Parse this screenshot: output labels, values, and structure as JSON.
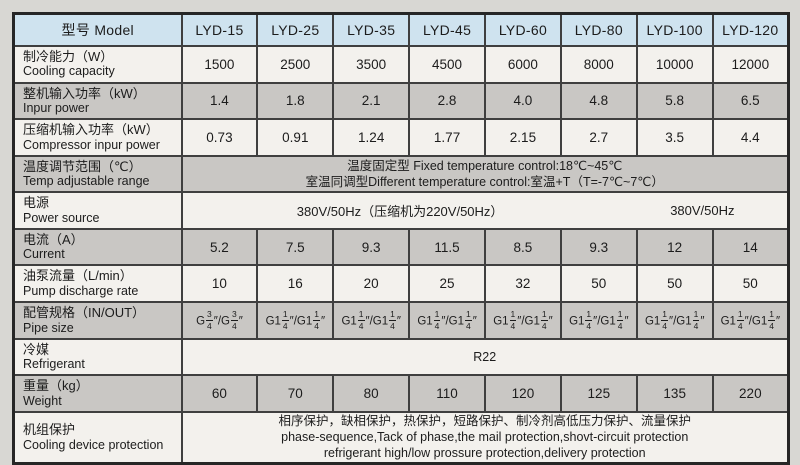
{
  "table": {
    "colors": {
      "header_bg": "#cfe3ef",
      "row_white": "#f3f1ed",
      "row_gray": "#c9c7c4",
      "line": "#3f3f3f",
      "page_bg": "#d8d7d3"
    },
    "header": {
      "label": "型号 Model",
      "models": [
        "LYD-15",
        "LYD-25",
        "LYD-35",
        "LYD-45",
        "LYD-60",
        "LYD-80",
        "LYD-100",
        "LYD-120"
      ]
    },
    "rows": [
      {
        "zh": "制冷能力（W）",
        "en": "Cooling capacity",
        "values": [
          "1500",
          "2500",
          "3500",
          "4500",
          "6000",
          "8000",
          "10000",
          "12000"
        ]
      },
      {
        "zh": "整机输入功率（kW）",
        "en": "Inpur power",
        "values": [
          "1.4",
          "1.8",
          "2.1",
          "2.8",
          "4.0",
          "4.8",
          "5.8",
          "6.5"
        ]
      },
      {
        "zh": "压缩机输入功率（kW）",
        "en": "Compressor inpur power",
        "values": [
          "0.73",
          "0.91",
          "1.24",
          "1.77",
          "2.15",
          "2.7",
          "3.5",
          "4.4"
        ]
      },
      {
        "zh": "温度调节范围（℃）",
        "en": "Temp adjustable range",
        "merged": [
          "温度固定型 Fixed temperature control:18℃~45℃",
          "室温同调型Different temperature control:室温+T（T=-7℃~7℃）"
        ]
      },
      {
        "zh": "电源",
        "en": "Power source",
        "split": [
          "380V/50Hz（压缩机为220V/50Hz）",
          "380V/50Hz"
        ]
      },
      {
        "zh": "电流（A）",
        "en": "Current",
        "values": [
          "5.2",
          "7.5",
          "9.3",
          "11.5",
          "8.5",
          "9.3",
          "12",
          "14"
        ]
      },
      {
        "zh": "油泵流量（L/min）",
        "en": "Pump discharge rate",
        "values": [
          "10",
          "16",
          "20",
          "25",
          "32",
          "50",
          "50",
          "50"
        ]
      },
      {
        "zh": "配管规格（IN/OUT）",
        "en": "Pipe size",
        "frac": true,
        "values": [
          "G3/4″/G3/4″",
          "G1 1/4″/G1 1/4″",
          "G1 1/4″/G1 1/4″",
          "G1 1/4″/G1 1/4″",
          "G1 1/4″/G1 1/4″",
          "G1 1/4″/G1 1/4″",
          "G1 1/4″/G1 1/4″",
          "G1 1/4″/G1 1/4″"
        ]
      },
      {
        "zh": "冷媒",
        "en": "Refrigerant",
        "merged": [
          "R22"
        ]
      },
      {
        "zh": "重量（kg）",
        "en": "Weight",
        "values": [
          "60",
          "70",
          "80",
          "110",
          "120",
          "125",
          "135",
          "220"
        ]
      },
      {
        "zh": "机组保护",
        "en": "Cooling device protection",
        "merged": [
          "相序保护，缺相保护，热保护，短路保护、制冷剂高低压力保护、流量保护",
          "phase-sequence,Tack of phase,the mail protection,shovt-circuit protection",
          "refrigerant high/low prossure protection,delivery protection"
        ]
      }
    ]
  }
}
